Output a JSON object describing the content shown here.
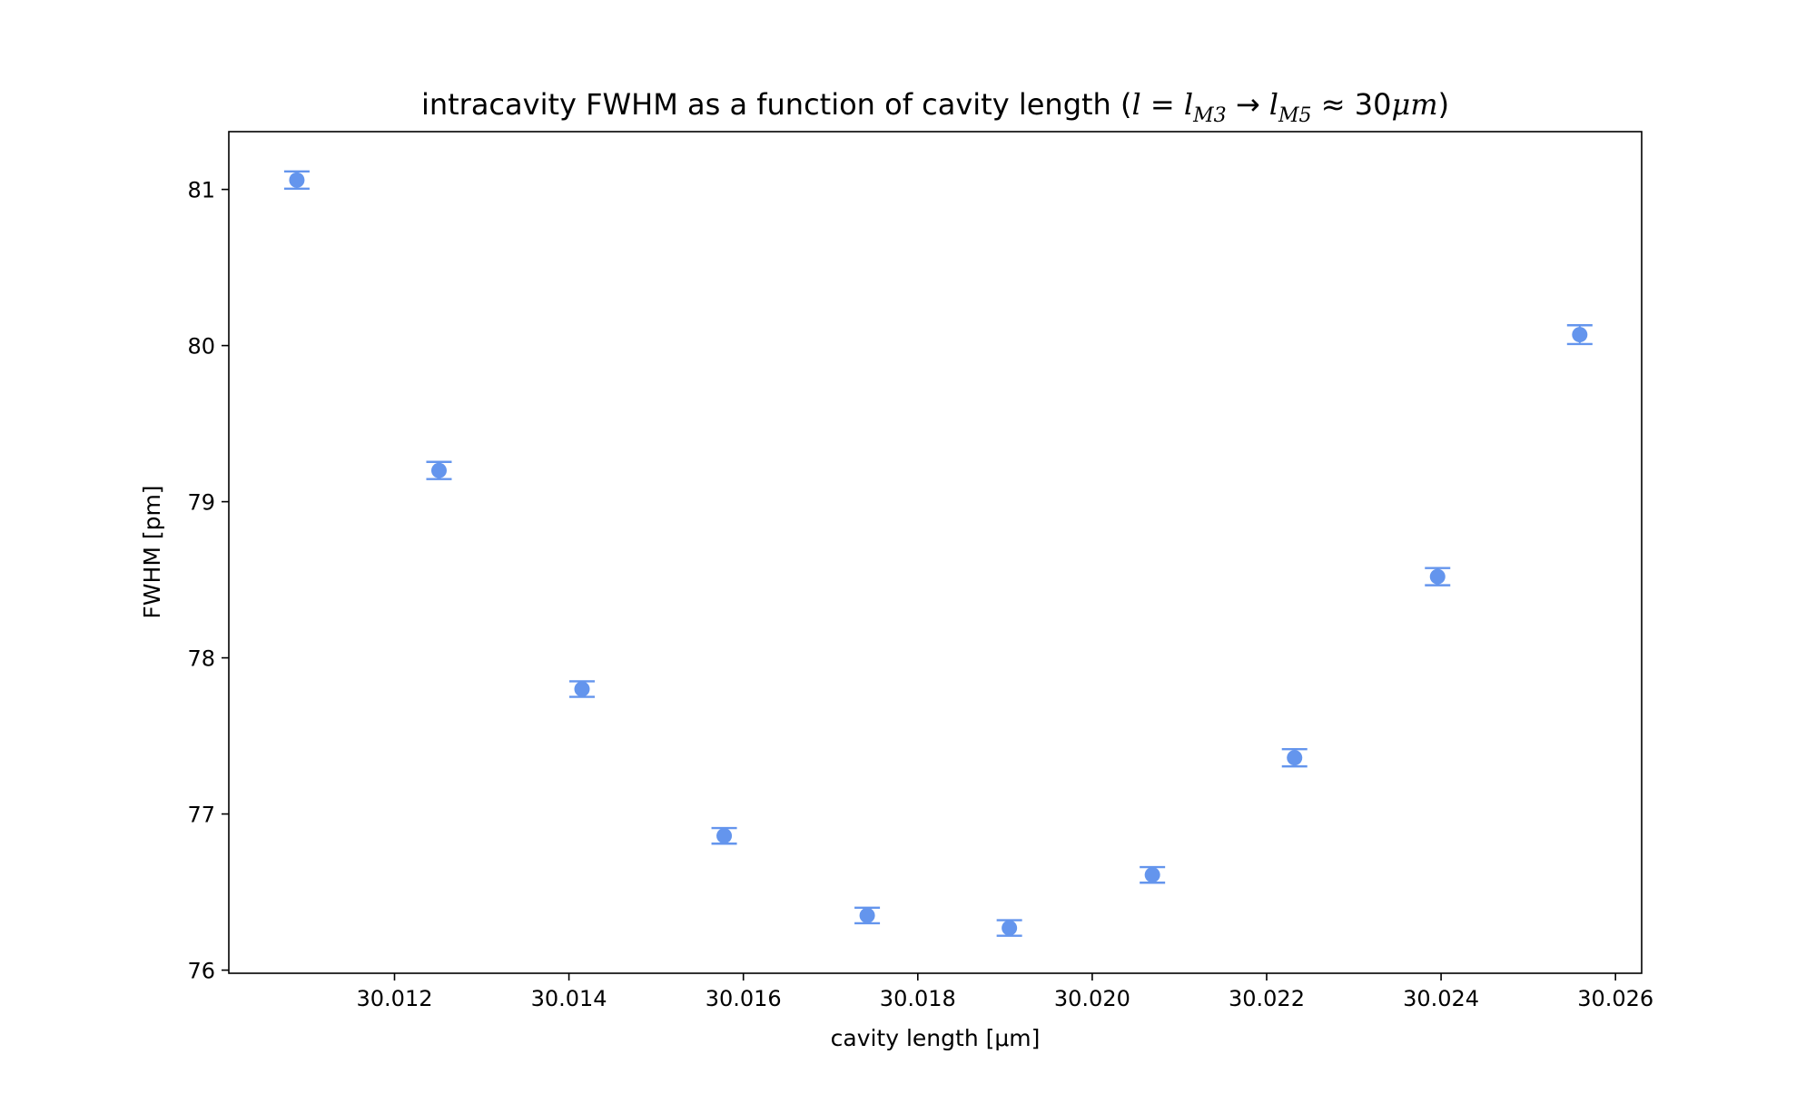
{
  "chart_data": {
    "type": "scatter",
    "title_parts": [
      {
        "text": "intracavity FWHM as a function of cavity length (",
        "style": "normal"
      },
      {
        "text": "l",
        "style": "italic"
      },
      {
        "text": " = ",
        "style": "normal"
      },
      {
        "text": "l",
        "style": "italic"
      },
      {
        "text": "M3",
        "style": "italic-sub"
      },
      {
        "text": " → ",
        "style": "normal"
      },
      {
        "text": "l",
        "style": "italic"
      },
      {
        "text": "M5",
        "style": "italic-sub"
      },
      {
        "text": " ≈ 30",
        "style": "normal"
      },
      {
        "text": "μm",
        "style": "italic"
      },
      {
        "text": ")",
        "style": "normal"
      }
    ],
    "xlabel": "cavity length [μm]",
    "ylabel": "FWHM [pm]",
    "xlim": [
      30.0101,
      30.0263
    ],
    "ylim": [
      75.98,
      81.37
    ],
    "xticks": [
      30.012,
      30.014,
      30.016,
      30.018,
      30.02,
      30.022,
      30.024,
      30.026
    ],
    "xtick_labels": [
      "30.012",
      "30.014",
      "30.016",
      "30.018",
      "30.020",
      "30.022",
      "30.024",
      "30.026"
    ],
    "yticks": [
      76,
      77,
      78,
      79,
      80,
      81
    ],
    "ytick_labels": [
      "76",
      "77",
      "78",
      "79",
      "80",
      "81"
    ],
    "grid": false,
    "series": [
      {
        "color": "#6495ED",
        "marker": "circle",
        "error_bars": true,
        "x": [
          30.01088,
          30.01251,
          30.01415,
          30.01578,
          30.01742,
          30.01905,
          30.02069,
          30.02232,
          30.02396,
          30.02559
        ],
        "y": [
          81.06,
          79.2,
          77.8,
          76.86,
          76.35,
          76.27,
          76.61,
          77.36,
          78.52,
          80.07
        ],
        "yerr": [
          0.055,
          0.055,
          0.05,
          0.05,
          0.05,
          0.05,
          0.05,
          0.055,
          0.055,
          0.06
        ]
      }
    ]
  }
}
